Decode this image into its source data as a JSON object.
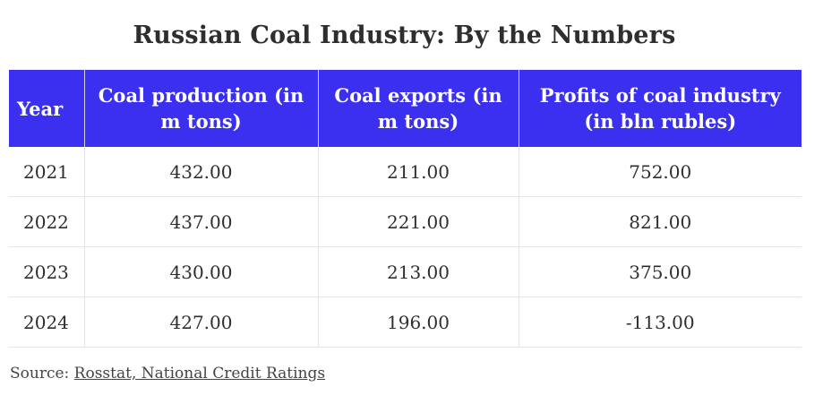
{
  "chart_data": {
    "type": "table",
    "title": "Russian Coal Industry: By the Numbers",
    "columns": [
      "Year",
      "Coal production (in m tons)",
      "Coal exports (in m tons)",
      "Profits of coal industry (in bln rubles)"
    ],
    "rows": [
      [
        "2021",
        "432.00",
        "211.00",
        "752.00"
      ],
      [
        "2022",
        "437.00",
        "221.00",
        "821.00"
      ],
      [
        "2023",
        "430.00",
        "213.00",
        "375.00"
      ],
      [
        "2024",
        "427.00",
        "196.00",
        "-113.00"
      ]
    ],
    "header_color": "#3b2ff0"
  },
  "source": {
    "label": "Source:",
    "link_text": "Rosstat, National Credit Ratings"
  }
}
